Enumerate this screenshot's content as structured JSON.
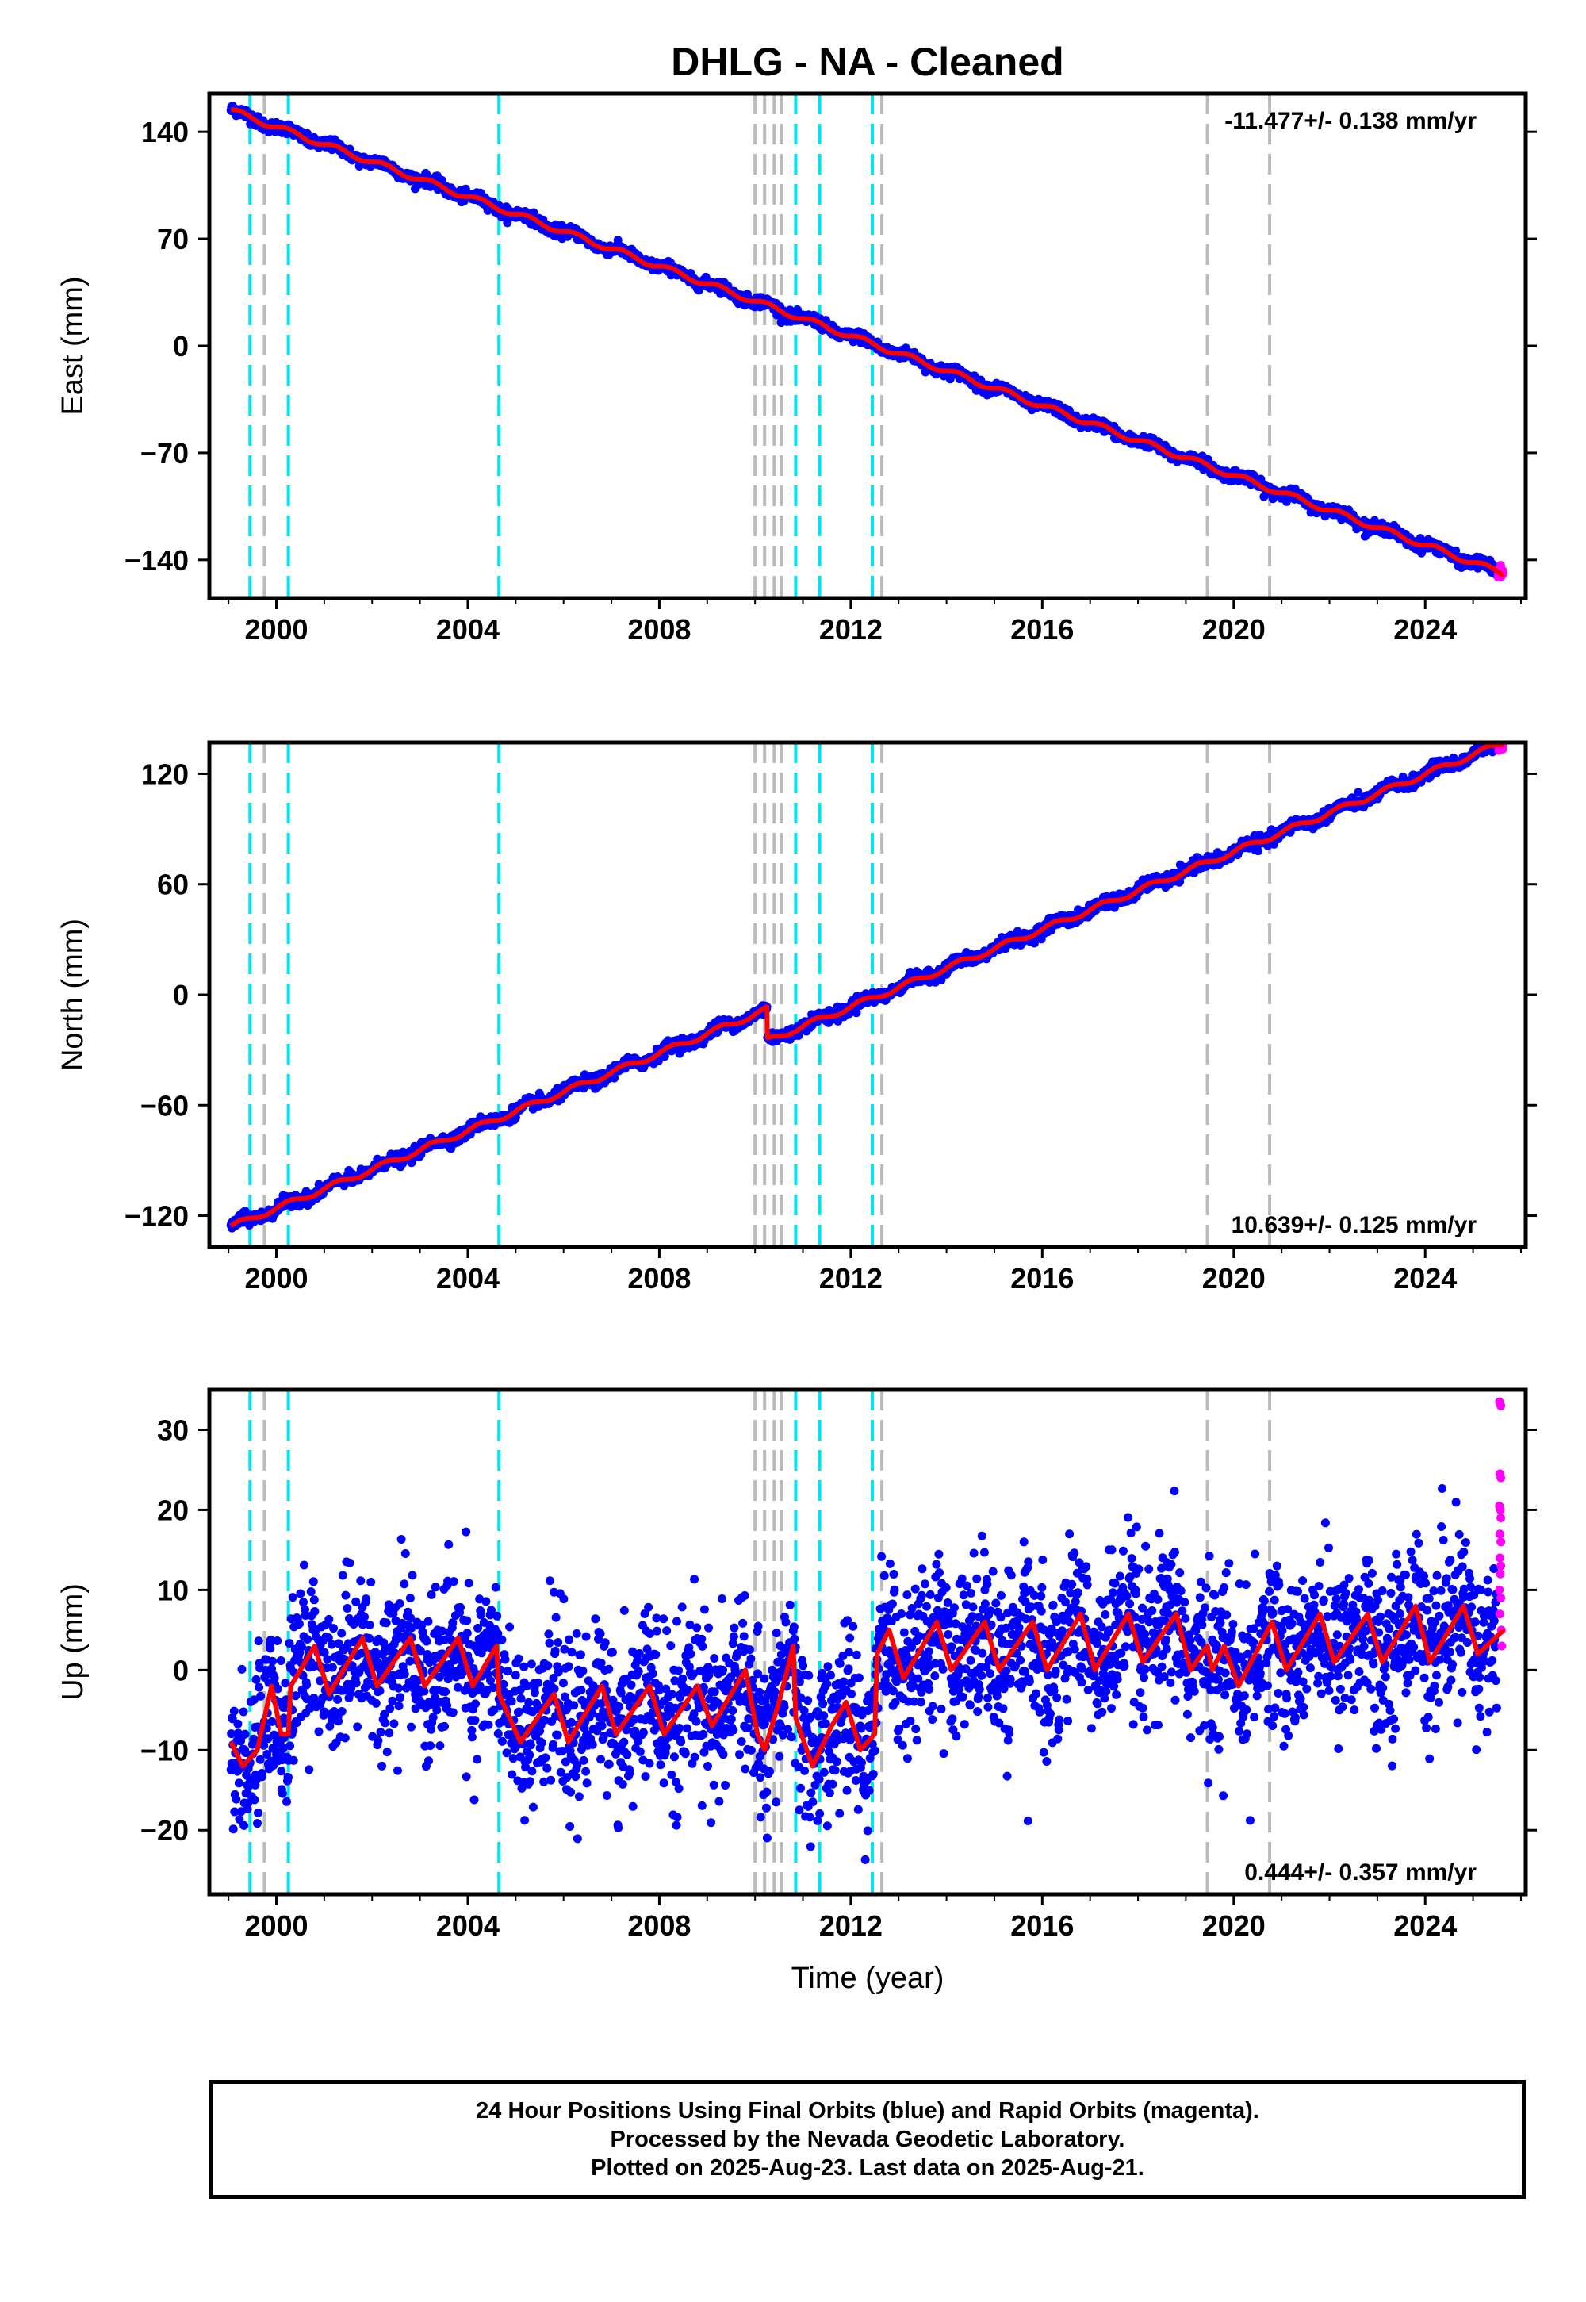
{
  "title": "DHLG  - NA - Cleaned",
  "footer": {
    "lines": [
      "24 Hour Positions Using Final Orbits (blue) and Rapid Orbits (magenta).",
      "Processed by the Nevada Geodetic Laboratory.",
      "Plotted on 2025-Aug-23. Last data on 2025-Aug-21."
    ]
  },
  "colors": {
    "final_orbits": "#0000ff",
    "rapid_orbits": "#ff00ff",
    "model_fit": "#ff0000",
    "equipment_change_lines": "#00e5ee",
    "earthquake_lines": "#bbbbbb"
  },
  "chart_data": [
    {
      "type": "scatter",
      "component": "east",
      "ylabel": "East (mm)",
      "xlabel": "",
      "xlim": [
        1998.6,
        2026.1
      ],
      "ylim": [
        -165,
        165
      ],
      "xticks": [
        2000,
        2004,
        2008,
        2012,
        2016,
        2020,
        2024
      ],
      "yticks": [
        -140,
        -70,
        0,
        70,
        140
      ],
      "grid": false,
      "velocity_label": "-11.477+/- 0.138 mm/yr",
      "velocity_label_position": "top-right",
      "series": [
        {
          "kind": "final",
          "start": [
            1999.05,
            155
          ],
          "end": [
            2025.5,
            -148
          ],
          "noise": 1.8
        },
        {
          "kind": "rapid",
          "start": [
            2025.52,
            -148
          ],
          "end": [
            2025.64,
            -150
          ],
          "noise": 2.0
        },
        {
          "kind": "model",
          "start": [
            1999.05,
            154
          ],
          "end": [
            2025.64,
            -149
          ],
          "seasonal_amplitude": 1.8,
          "offsets": []
        }
      ]
    },
    {
      "type": "scatter",
      "component": "north",
      "ylabel": "North (mm)",
      "xlabel": "",
      "xlim": [
        1998.6,
        2026.1
      ],
      "ylim": [
        -137,
        137
      ],
      "xticks": [
        2000,
        2004,
        2008,
        2012,
        2016,
        2020,
        2024
      ],
      "yticks": [
        -120,
        -60,
        0,
        60,
        120
      ],
      "grid": false,
      "velocity_label": "10.639+/- 0.125 mm/yr",
      "velocity_label_position": "bottom-right",
      "series": [
        {
          "kind": "final",
          "start": [
            1999.05,
            -126
          ],
          "end": [
            2025.5,
            136
          ],
          "noise": 1.6
        },
        {
          "kind": "rapid",
          "start": [
            2025.52,
            136
          ],
          "end": [
            2025.64,
            137
          ],
          "noise": 1.8
        },
        {
          "kind": "model",
          "start": [
            1999.05,
            -126
          ],
          "end": [
            2025.64,
            137
          ],
          "seasonal_amplitude": 1.5,
          "offsets": [
            {
              "t": 2010.25,
              "dy": -17
            }
          ]
        }
      ]
    },
    {
      "type": "scatter",
      "component": "up",
      "ylabel": "Up (mm)",
      "xlabel": "Time (year)",
      "xlim": [
        1998.6,
        2026.1
      ],
      "ylim": [
        -28,
        35
      ],
      "xticks": [
        2000,
        2004,
        2008,
        2012,
        2016,
        2020,
        2024
      ],
      "yticks": [
        -20,
        -10,
        0,
        10,
        20,
        30
      ],
      "grid": false,
      "velocity_label": "0.444+/- 0.357 mm/yr",
      "velocity_label_position": "bottom-right",
      "model_knots": [
        [
          1999.05,
          -9
        ],
        [
          1999.3,
          -12
        ],
        [
          1999.6,
          -10
        ],
        [
          1999.9,
          -2
        ],
        [
          2000.1,
          -8
        ],
        [
          2000.25,
          -8
        ],
        [
          2000.3,
          -2
        ],
        [
          2000.8,
          3
        ],
        [
          2001.1,
          -3
        ],
        [
          2001.8,
          4
        ],
        [
          2002.1,
          -2
        ],
        [
          2002.8,
          4
        ],
        [
          2003.1,
          -2
        ],
        [
          2003.8,
          4
        ],
        [
          2004.1,
          -2
        ],
        [
          2004.6,
          3
        ],
        [
          2004.65,
          -3
        ],
        [
          2005.1,
          -9
        ],
        [
          2005.8,
          -3
        ],
        [
          2006.1,
          -9
        ],
        [
          2006.8,
          -2
        ],
        [
          2007.1,
          -8
        ],
        [
          2007.8,
          -2
        ],
        [
          2008.1,
          -8
        ],
        [
          2008.8,
          -2
        ],
        [
          2009.1,
          -7
        ],
        [
          2009.8,
          0
        ],
        [
          2010.05,
          -8
        ],
        [
          2010.2,
          -10
        ],
        [
          2010.5,
          -4
        ],
        [
          2010.8,
          3
        ],
        [
          2010.85,
          -6
        ],
        [
          2011.2,
          -12
        ],
        [
          2011.6,
          -7
        ],
        [
          2011.9,
          -4
        ],
        [
          2012.2,
          -10
        ],
        [
          2012.5,
          -8
        ],
        [
          2012.55,
          2
        ],
        [
          2012.8,
          5
        ],
        [
          2013.1,
          -1
        ],
        [
          2013.8,
          6
        ],
        [
          2014.1,
          0
        ],
        [
          2014.8,
          6
        ],
        [
          2015.1,
          0
        ],
        [
          2015.8,
          6
        ],
        [
          2016.1,
          0
        ],
        [
          2016.8,
          7
        ],
        [
          2017.1,
          0
        ],
        [
          2017.8,
          7
        ],
        [
          2018.1,
          1
        ],
        [
          2018.8,
          7
        ],
        [
          2019.1,
          0
        ],
        [
          2019.45,
          3
        ],
        [
          2019.55,
          0
        ],
        [
          2019.8,
          3
        ],
        [
          2020.1,
          -2
        ],
        [
          2020.8,
          6
        ],
        [
          2021.1,
          0
        ],
        [
          2021.8,
          7
        ],
        [
          2022.1,
          1
        ],
        [
          2022.8,
          7
        ],
        [
          2023.1,
          1
        ],
        [
          2023.8,
          8
        ],
        [
          2024.1,
          1
        ],
        [
          2024.8,
          8
        ],
        [
          2025.1,
          2
        ],
        [
          2025.64,
          5
        ]
      ],
      "series": [
        {
          "kind": "final",
          "start": [
            1999.05,
            -9
          ],
          "end": [
            2025.5,
            5
          ],
          "noise": 5.0
        },
        {
          "kind": "rapid",
          "values": [
            [
              2025.55,
              33.5
            ],
            [
              2025.58,
              33
            ],
            [
              2025.56,
              24.5
            ],
            [
              2025.58,
              24
            ],
            [
              2025.55,
              20.5
            ],
            [
              2025.57,
              20
            ],
            [
              2025.58,
              19
            ],
            [
              2025.56,
              17
            ],
            [
              2025.58,
              16
            ],
            [
              2025.56,
              14
            ],
            [
              2025.58,
              13
            ],
            [
              2025.57,
              12
            ],
            [
              2025.55,
              10
            ],
            [
              2025.58,
              9
            ],
            [
              2025.56,
              7
            ],
            [
              2025.59,
              5
            ],
            [
              2025.6,
              3
            ]
          ]
        },
        {
          "kind": "model"
        }
      ]
    }
  ],
  "event_lines": {
    "equipment_change": [
      1999.45,
      2000.25,
      2004.65,
      2010.85,
      2011.35,
      2012.45
    ],
    "earthquake": [
      1999.75,
      2010.0,
      2010.2,
      2010.4,
      2010.55,
      2012.65,
      2019.45,
      2020.75
    ]
  }
}
